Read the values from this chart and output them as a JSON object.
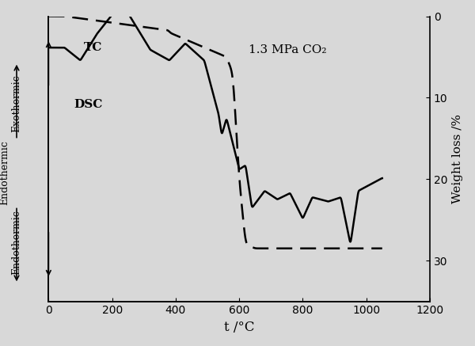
{
  "title": "",
  "xlabel": "t /°C",
  "ylabel_right": "Weight loss /%",
  "ylabel_left": "Endothermic → Exothermic",
  "xlim": [
    0,
    1200
  ],
  "ylim_left": [
    0,
    1
  ],
  "ylim_right": [
    0,
    35
  ],
  "annotation": "1.3 MPa CO₂",
  "label_TC": "TC",
  "label_DSC": "DSC",
  "bg_color": "#e8e8e8",
  "line_color": "#000000"
}
